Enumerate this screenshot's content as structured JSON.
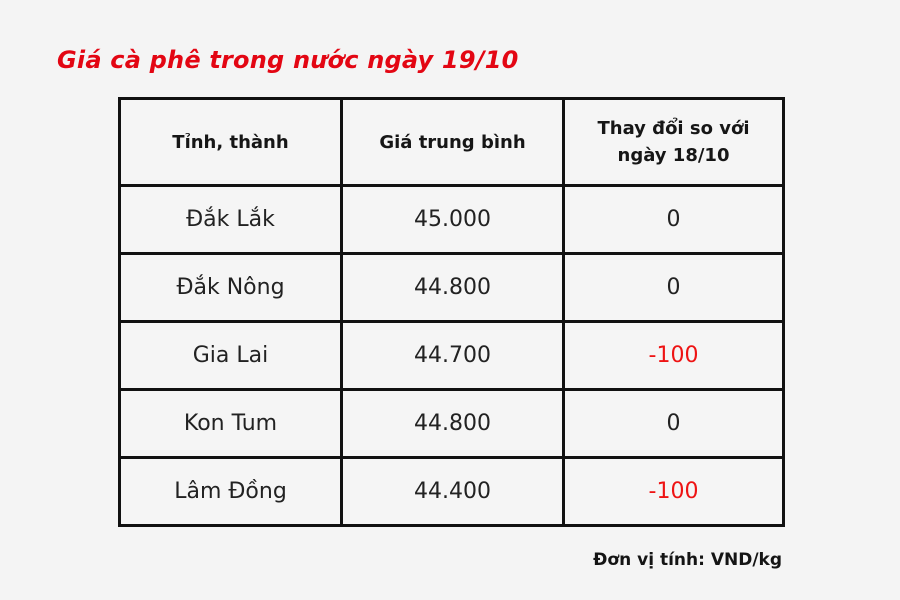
{
  "colors": {
    "title_red": "#e30613",
    "negative_red": "#ee1313",
    "table_border": "#111111",
    "background": "#f4f4f4"
  },
  "chart_data": {
    "type": "table",
    "title": "Giá cà phê trong nước ngày 19/10",
    "columns": [
      "Tỉnh, thành",
      "Giá trung bình",
      "Thay đổi so với ngày 18/10"
    ],
    "rows": [
      [
        "Đắk Lắk",
        "45.000",
        "0"
      ],
      [
        "Đắk Nông",
        "44.800",
        "0"
      ],
      [
        "Gia Lai",
        "44.700",
        "-100"
      ],
      [
        "Kon Tum",
        "44.800",
        "0"
      ],
      [
        "Lâm Đồng",
        "44.400",
        "-100"
      ]
    ],
    "unit_note": "Đơn vị tính: VND/kg"
  }
}
